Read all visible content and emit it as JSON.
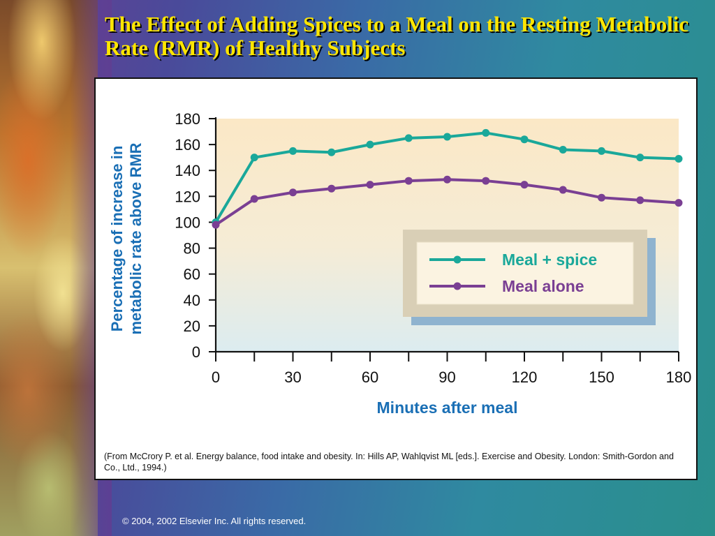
{
  "slide": {
    "title": "The Effect of Adding Spices to a Meal on the Resting Metabolic Rate (RMR) of Healthy Subjects",
    "citation": "(From McCrory P. et al. Energy balance, food intake and obesity. In: Hills AP, Wahlqvist ML [eds.]. Exercise and Obesity. London: Smith-Gordon and Co., Ltd., 1994.)",
    "copyright": "© 2004, 2002  Elsevier Inc.  All rights reserved."
  },
  "chart_data": {
    "type": "line",
    "title": "",
    "xlabel": "Minutes after meal",
    "ylabel": "Percentage of increase in metabolic rate above RMR",
    "ylabel_lines": [
      "Percentage of increase in",
      "metabolic rate above RMR"
    ],
    "xlim": [
      0,
      180
    ],
    "ylim": [
      0,
      180
    ],
    "xticks": [
      0,
      30,
      60,
      90,
      120,
      150,
      180
    ],
    "xticks_minor": [
      15,
      45,
      75,
      105,
      135,
      165
    ],
    "yticks": [
      0,
      20,
      40,
      60,
      80,
      100,
      120,
      140,
      160,
      180
    ],
    "grid": false,
    "legend_position": "center-right",
    "x": [
      0,
      15,
      30,
      45,
      60,
      75,
      90,
      105,
      120,
      135,
      150,
      165,
      180
    ],
    "series": [
      {
        "name": "Meal + spice",
        "color": "#1aa89a",
        "values": [
          100,
          150,
          155,
          154,
          160,
          165,
          166,
          169,
          164,
          156,
          155,
          150,
          149
        ]
      },
      {
        "name": "Meal alone",
        "color": "#7a3f93",
        "values": [
          98,
          118,
          123,
          126,
          129,
          132,
          133,
          132,
          129,
          125,
          119,
          117,
          115
        ]
      }
    ],
    "colors": {
      "axis_text": "#1a6fb5",
      "plot_bg_top": "#fbe8c6",
      "plot_bg_bottom": "#dcecf0",
      "legend_frame": "#d9cfb6",
      "legend_shadow": "#8fb3cf"
    }
  }
}
